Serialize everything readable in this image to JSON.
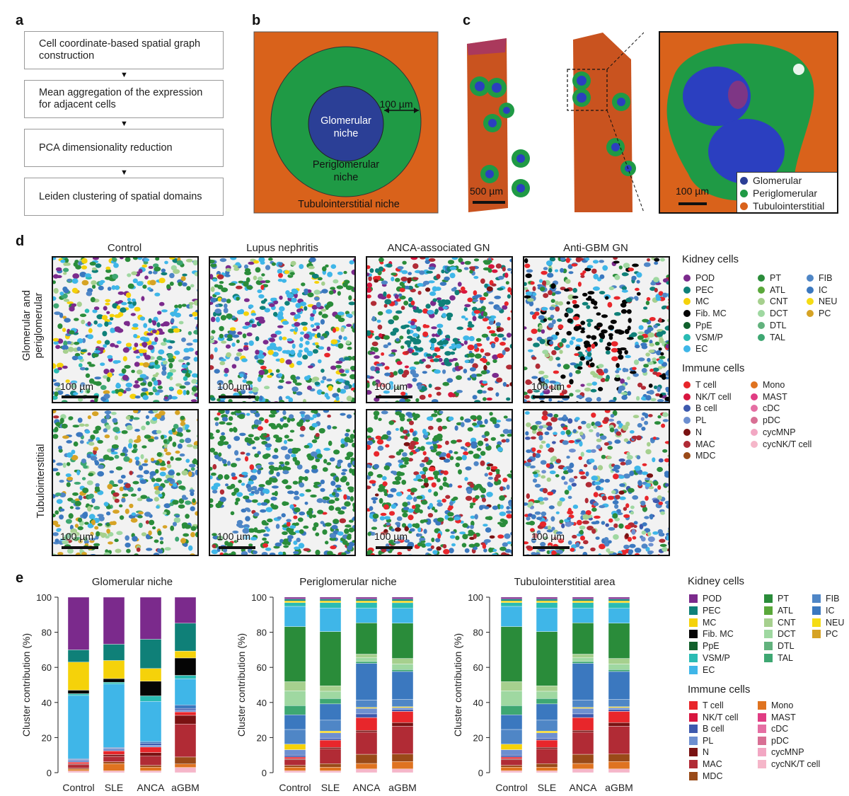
{
  "panels": {
    "a": "a",
    "b": "b",
    "c": "c",
    "d": "d",
    "e": "e"
  },
  "panel_a": {
    "steps": [
      "Cell coordinate-based spatial graph construction",
      "Mean aggregation of the expression for adjacent cells",
      "PCA dimensionality reduction",
      "Leiden clustering of spatial domains"
    ],
    "arrow": "▼"
  },
  "panel_b": {
    "inner_label": "Glomerular niche",
    "ring_label": "Periglomerular niche",
    "outer_label": "Tubulointerstitial niche",
    "distance_label": "100 µm",
    "colors": {
      "outer": "#d9621b",
      "ring": "#1f9a45",
      "inner": "#2b3f96"
    }
  },
  "panel_c": {
    "scale_left": "500 µm",
    "scale_right": "100 µm",
    "legend": [
      {
        "label": "Glomerular",
        "color": "#2b3f96"
      },
      {
        "label": "Periglomerular",
        "color": "#1f9a45"
      },
      {
        "label": "Tubulointerstitial",
        "color": "#d9621b"
      }
    ]
  },
  "panel_d": {
    "columns": [
      "Control",
      "Lupus nephritis",
      "ANCA-associated GN",
      "Anti-GBM GN"
    ],
    "rows": [
      "Glomerular and periglomerular",
      "Tubulointerstitial"
    ],
    "scale": "100 µm",
    "kidney_title": "Kidney cells",
    "immune_title": "Immune cells"
  },
  "legend": {
    "kidney": [
      {
        "label": "POD",
        "color": "#7b2a8c"
      },
      {
        "label": "PEC",
        "color": "#0f8078"
      },
      {
        "label": "MC",
        "color": "#f5d20a"
      },
      {
        "label": "Fib. MC",
        "color": "#050505"
      },
      {
        "label": "PpE",
        "color": "#11602c"
      },
      {
        "label": "VSM/P",
        "color": "#2abbb3"
      },
      {
        "label": "EC",
        "color": "#3fb6e8"
      },
      {
        "label": "PT",
        "color": "#2a8c3a"
      },
      {
        "label": "ATL",
        "color": "#5aa83a"
      },
      {
        "label": "CNT",
        "color": "#a6d08e"
      },
      {
        "label": "DCT",
        "color": "#9fd8a1"
      },
      {
        "label": "DTL",
        "color": "#62b27d"
      },
      {
        "label": "TAL",
        "color": "#3ea772"
      },
      {
        "label": "FIB",
        "color": "#4f86c6"
      },
      {
        "label": "IC",
        "color": "#3b78bf"
      },
      {
        "label": "NEU",
        "color": "#f5dc14"
      },
      {
        "label": "PC",
        "color": "#d6a325"
      }
    ],
    "immune": [
      {
        "label": "T cell",
        "color": "#e8262b"
      },
      {
        "label": "NK/T cell",
        "color": "#d8163f"
      },
      {
        "label": "B cell",
        "color": "#3d59ad"
      },
      {
        "label": "PL",
        "color": "#6d8fd0"
      },
      {
        "label": "N",
        "color": "#7a1212"
      },
      {
        "label": "MAC",
        "color": "#b12b35"
      },
      {
        "label": "MDC",
        "color": "#9a4a18"
      },
      {
        "label": "Mono",
        "color": "#df7320"
      },
      {
        "label": "MAST",
        "color": "#e03c83"
      },
      {
        "label": "cDC",
        "color": "#e56fa3"
      },
      {
        "label": "pDC",
        "color": "#d86f94"
      },
      {
        "label": "cycMNP",
        "color": "#f2a7c3"
      },
      {
        "label": "cycNK/T cell",
        "color": "#f5b6c9"
      }
    ]
  },
  "panel_e": {
    "ylabel": "Cluster contribution (%)",
    "kidney_title": "Kidney cells",
    "immune_title": "Immune cells"
  },
  "chart_data": [
    {
      "type": "bar",
      "stacked": true,
      "title": "Glomerular niche",
      "ylabel": "Cluster contribution (%)",
      "ylim": [
        0,
        100
      ],
      "yticks": [
        0,
        20,
        40,
        60,
        80,
        100
      ],
      "categories": [
        "Control",
        "SLE",
        "ANCA",
        "aGBM"
      ],
      "series": [
        {
          "name": "cycNK/T cell",
          "values": [
            1,
            1,
            1,
            3
          ]
        },
        {
          "name": "Mono",
          "values": [
            1,
            4,
            2,
            2
          ]
        },
        {
          "name": "MDC",
          "values": [
            0.5,
            1,
            1,
            4
          ]
        },
        {
          "name": "MAC",
          "values": [
            2,
            3,
            5,
            19
          ]
        },
        {
          "name": "N",
          "values": [
            0.5,
            1,
            2,
            5
          ]
        },
        {
          "name": "T cell",
          "values": [
            1,
            2,
            3,
            2
          ]
        },
        {
          "name": "PL",
          "values": [
            1,
            1,
            1,
            1
          ]
        },
        {
          "name": "B cell",
          "values": [
            0.5,
            0.5,
            1,
            1
          ]
        },
        {
          "name": "IC",
          "values": [
            0.5,
            0.5,
            1,
            2
          ]
        },
        {
          "name": "EC",
          "values": [
            36,
            35,
            22,
            15
          ]
        },
        {
          "name": "VSM/P",
          "values": [
            1,
            1,
            3,
            2
          ]
        },
        {
          "name": "Fib. MC",
          "values": [
            2,
            2,
            8,
            10
          ]
        },
        {
          "name": "MC",
          "values": [
            16,
            10,
            7,
            4
          ]
        },
        {
          "name": "PEC",
          "values": [
            7,
            9,
            16,
            16
          ]
        },
        {
          "name": "POD",
          "values": [
            30,
            26,
            23,
            15
          ]
        }
      ]
    },
    {
      "type": "bar",
      "stacked": true,
      "title": "Periglomerular niche",
      "ylabel": "Cluster contribution (%)",
      "ylim": [
        0,
        100
      ],
      "yticks": [
        0,
        20,
        40,
        60,
        80,
        100
      ],
      "categories": [
        "Control",
        "SLE",
        "ANCA",
        "aGBM"
      ],
      "series": [
        {
          "name": "cycNK/T cell",
          "values": [
            1,
            1,
            2,
            2
          ]
        },
        {
          "name": "Mono",
          "values": [
            2,
            2,
            3,
            4
          ]
        },
        {
          "name": "MDC",
          "values": [
            1,
            2,
            5,
            4
          ]
        },
        {
          "name": "MAC",
          "values": [
            3,
            8,
            12,
            15
          ]
        },
        {
          "name": "N",
          "values": [
            0.5,
            1,
            1,
            2
          ]
        },
        {
          "name": "T cell",
          "values": [
            1,
            4,
            7,
            6
          ]
        },
        {
          "name": "B cell",
          "values": [
            1,
            1,
            2,
            1
          ]
        },
        {
          "name": "PL",
          "values": [
            3,
            3,
            3,
            1
          ]
        },
        {
          "name": "MC",
          "values": [
            3,
            1,
            0.5,
            0.5
          ]
        },
        {
          "name": "FIB",
          "values": [
            8,
            6,
            4,
            4
          ]
        },
        {
          "name": "IC",
          "values": [
            8,
            9,
            20,
            15
          ]
        },
        {
          "name": "TAL",
          "values": [
            5,
            3,
            1,
            1
          ]
        },
        {
          "name": "DCT",
          "values": [
            8,
            4,
            2,
            3
          ]
        },
        {
          "name": "CNT",
          "values": [
            5,
            3,
            2,
            3
          ]
        },
        {
          "name": "PT",
          "values": [
            30,
            30,
            17,
            19
          ]
        },
        {
          "name": "EC",
          "values": [
            11,
            13,
            8,
            8
          ]
        },
        {
          "name": "VSM/P",
          "values": [
            2,
            3,
            3,
            3
          ]
        },
        {
          "name": "MC",
          "values": [
            1,
            1,
            1,
            1
          ]
        },
        {
          "name": "PEC",
          "values": [
            1,
            1,
            1,
            1
          ]
        },
        {
          "name": "POD",
          "values": [
            1,
            1,
            1,
            1
          ]
        }
      ]
    },
    {
      "type": "bar",
      "stacked": true,
      "title": "Tubulointerstitial area",
      "ylabel": "Cluster contribution (%)",
      "ylim": [
        0,
        100
      ],
      "yticks": [
        0,
        20,
        40,
        60,
        80,
        100
      ],
      "categories": [
        "Control",
        "SLE",
        "ANCA",
        "aGBM"
      ],
      "series": [
        {
          "name": "cycNK/T cell",
          "values": [
            1,
            1,
            2,
            2
          ]
        },
        {
          "name": "Mono",
          "values": [
            2,
            2,
            3,
            4
          ]
        },
        {
          "name": "MDC",
          "values": [
            1,
            2,
            5,
            4
          ]
        },
        {
          "name": "MAC",
          "values": [
            3,
            8,
            12,
            15
          ]
        },
        {
          "name": "N",
          "values": [
            0.5,
            1,
            1,
            2
          ]
        },
        {
          "name": "T cell",
          "values": [
            1,
            4,
            7,
            6
          ]
        },
        {
          "name": "B cell",
          "values": [
            1,
            1,
            2,
            1
          ]
        },
        {
          "name": "PL",
          "values": [
            3,
            3,
            3,
            1
          ]
        },
        {
          "name": "MC",
          "values": [
            3,
            1,
            0.5,
            0.5
          ]
        },
        {
          "name": "FIB",
          "values": [
            8,
            6,
            4,
            4
          ]
        },
        {
          "name": "IC",
          "values": [
            8,
            9,
            20,
            15
          ]
        },
        {
          "name": "TAL",
          "values": [
            5,
            3,
            1,
            1
          ]
        },
        {
          "name": "DCT",
          "values": [
            8,
            4,
            2,
            3
          ]
        },
        {
          "name": "CNT",
          "values": [
            5,
            3,
            2,
            3
          ]
        },
        {
          "name": "PT",
          "values": [
            30,
            30,
            17,
            19
          ]
        },
        {
          "name": "EC",
          "values": [
            11,
            13,
            8,
            8
          ]
        },
        {
          "name": "VSM/P",
          "values": [
            2,
            3,
            3,
            3
          ]
        },
        {
          "name": "MC",
          "values": [
            1,
            1,
            1,
            1
          ]
        },
        {
          "name": "PEC",
          "values": [
            1,
            1,
            1,
            1
          ]
        },
        {
          "name": "POD",
          "values": [
            1,
            1,
            1,
            1
          ]
        }
      ]
    }
  ]
}
